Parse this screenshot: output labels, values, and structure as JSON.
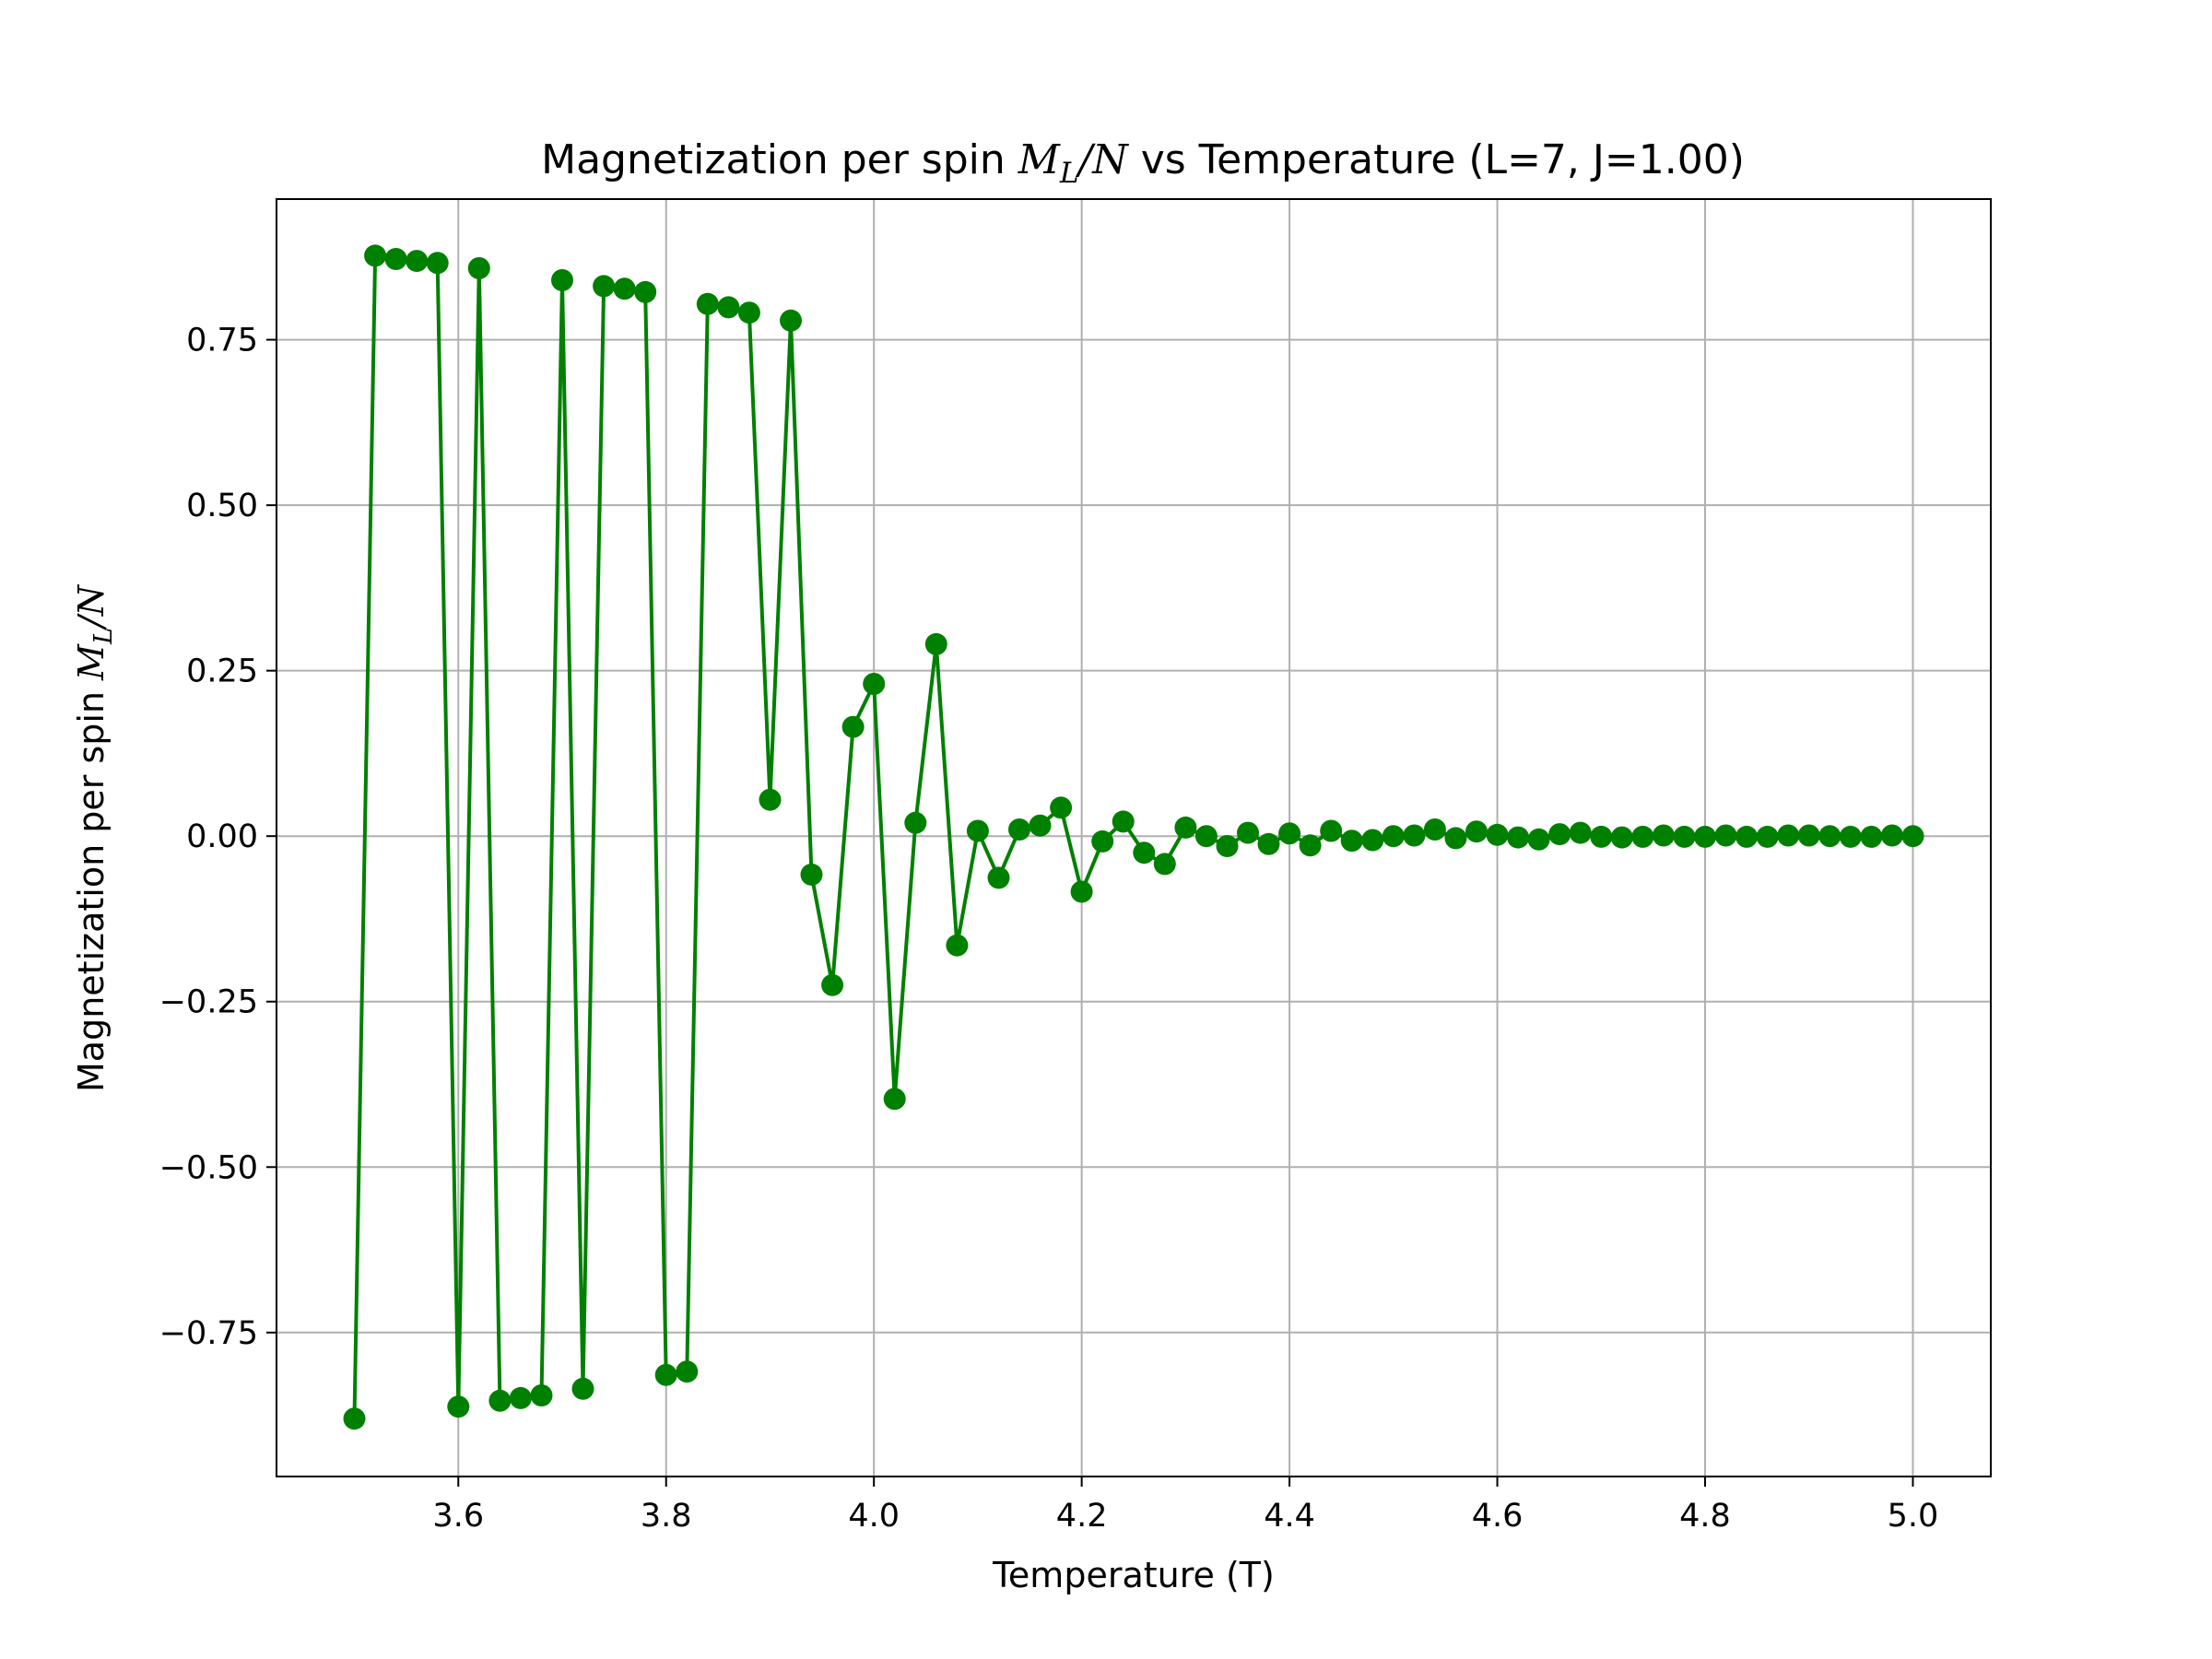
{
  "chart_data": {
    "type": "line",
    "title_main": "Magnetization per spin ",
    "title_symbol": "M",
    "title_sub": "L",
    "title_den": "/N",
    "title_rest": " vs Temperature (L=7, J=1.00)",
    "xlabel": "Temperature (T)",
    "ylabel_main": "Magnetization per spin ",
    "ylabel_symbol": "M",
    "ylabel_sub": "L",
    "ylabel_den": "/N",
    "xlim": [
      3.425,
      5.075
    ],
    "ylim": [
      -0.9675,
      0.9625
    ],
    "xticks": [
      3.6,
      3.8,
      4.0,
      4.2,
      4.4,
      4.6,
      4.8,
      5.0
    ],
    "xtick_labels": [
      "3.6",
      "3.8",
      "4.0",
      "4.2",
      "4.4",
      "4.6",
      "4.8",
      "5.0"
    ],
    "yticks": [
      -0.75,
      -0.5,
      -0.25,
      0.0,
      0.25,
      0.5,
      0.75
    ],
    "ytick_labels": [
      "−0.75",
      "−0.50",
      "−0.25",
      "0.00",
      "0.25",
      "0.50",
      "0.75"
    ],
    "grid": true,
    "color": "#008000",
    "series": [
      {
        "x": [
          3.5,
          3.52,
          3.54,
          3.56,
          3.58,
          3.6,
          3.62,
          3.64,
          3.66,
          3.68,
          3.7,
          3.72,
          3.74,
          3.76,
          3.78,
          3.8,
          3.82,
          3.84,
          3.86,
          3.88,
          3.9,
          3.92,
          3.94,
          3.96,
          3.98,
          4.0,
          4.02,
          4.04,
          4.06,
          4.08,
          4.1,
          4.12,
          4.14,
          4.16,
          4.18,
          4.2,
          4.22,
          4.24,
          4.26,
          4.28,
          4.3,
          4.32,
          4.34,
          4.36,
          4.38,
          4.4,
          4.42,
          4.44,
          4.46,
          4.48,
          4.5,
          4.52,
          4.54,
          4.56,
          4.58,
          4.6,
          4.62,
          4.64,
          4.66,
          4.68,
          4.7,
          4.72,
          4.74,
          4.76,
          4.78,
          4.8,
          4.82,
          4.84,
          4.86,
          4.88,
          4.9,
          4.92,
          4.94,
          4.96,
          4.98,
          5.0
        ],
        "y": [
          -0.88,
          0.877,
          0.872,
          0.869,
          0.866,
          -0.862,
          0.858,
          -0.853,
          -0.849,
          -0.845,
          0.84,
          -0.835,
          0.831,
          0.827,
          0.822,
          -0.814,
          -0.809,
          0.804,
          0.799,
          0.791,
          0.055,
          0.779,
          -0.058,
          -0.225,
          0.165,
          0.23,
          -0.397,
          0.02,
          0.29,
          -0.165,
          0.008,
          -0.063,
          0.01,
          0.016,
          0.043,
          -0.084,
          -0.008,
          0.022,
          -0.025,
          -0.042,
          0.013,
          0.0,
          -0.015,
          0.005,
          -0.012,
          0.004,
          -0.014,
          0.008,
          -0.007,
          -0.006,
          0.0,
          0.001,
          0.01,
          -0.003,
          0.007,
          0.002,
          -0.002,
          -0.005,
          0.003,
          0.005,
          -0.001,
          -0.002,
          -0.001,
          0.001,
          -0.001,
          -0.001,
          0.001,
          -0.001,
          -0.001,
          0.001,
          0.001,
          0.0,
          -0.001,
          -0.001,
          0.001,
          0.0
        ]
      }
    ]
  }
}
